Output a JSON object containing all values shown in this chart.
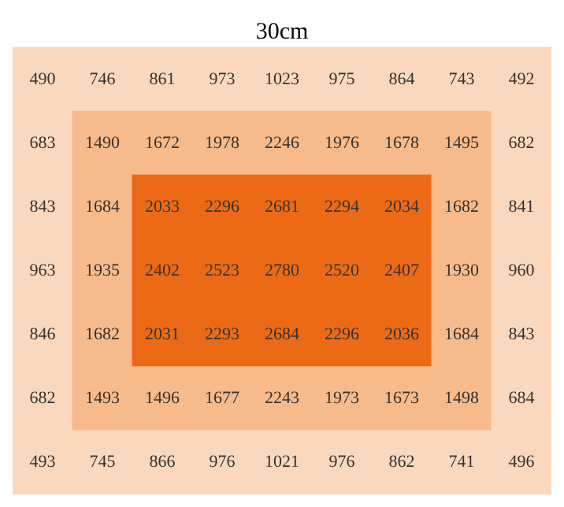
{
  "chart_data": {
    "type": "heatmap",
    "title": "30cm",
    "tick_labels": false,
    "data_labels": true,
    "categories": [
      null,
      null,
      null,
      null,
      null,
      null,
      null,
      null,
      null
    ],
    "y_categories": [
      null,
      null,
      null,
      null,
      null,
      null,
      null
    ],
    "cells": [
      [
        490,
        746,
        861,
        973,
        1023,
        975,
        864,
        743,
        492
      ],
      [
        683,
        1490,
        1672,
        1978,
        2246,
        1976,
        1678,
        1495,
        682
      ],
      [
        843,
        1684,
        2033,
        2296,
        2681,
        2294,
        2034,
        1682,
        841
      ],
      [
        963,
        1935,
        2402,
        2523,
        2780,
        2520,
        2407,
        1930,
        960
      ],
      [
        846,
        1682,
        2031,
        2293,
        2684,
        2296,
        2036,
        1684,
        843
      ],
      [
        682,
        1493,
        1496,
        1677,
        2243,
        1973,
        1673,
        1498,
        684
      ],
      [
        493,
        745,
        866,
        976,
        1021,
        976,
        862,
        741,
        496
      ]
    ],
    "colors": [
      [
        "#fad8bd",
        "#fad8bd",
        "#fad8bd",
        "#fad8bd",
        "#fad8bd",
        "#fad8bd",
        "#fad8bd",
        "#fad8bd",
        "#fad8bd"
      ],
      [
        "#fad8bd",
        "#f7ba8a",
        "#f7ba8a",
        "#f7ba8a",
        "#f7ba8a",
        "#f7ba8a",
        "#f7ba8a",
        "#f7ba8a",
        "#fad8bd"
      ],
      [
        "#fad8bd",
        "#f7ba8a",
        "#ec6a16",
        "#ec6a16",
        "#ec6a16",
        "#ec6a16",
        "#ec6a16",
        "#f7ba8a",
        "#fad8bd"
      ],
      [
        "#fad8bd",
        "#f7ba8a",
        "#ec6a16",
        "#ec6a16",
        "#ec6a16",
        "#ec6a16",
        "#ec6a16",
        "#f7ba8a",
        "#fad8bd"
      ],
      [
        "#fad8bd",
        "#f7ba8a",
        "#ec6a16",
        "#ec6a16",
        "#ec6a16",
        "#ec6a16",
        "#ec6a16",
        "#f7ba8a",
        "#fad8bd"
      ],
      [
        "#fad8bd",
        "#f7ba8a",
        "#f7ba8a",
        "#f7ba8a",
        "#f7ba8a",
        "#f7ba8a",
        "#f7ba8a",
        "#f7ba8a",
        "#fad8bd"
      ],
      [
        "#fad8bd",
        "#fad8bd",
        "#fad8bd",
        "#fad8bd",
        "#fad8bd",
        "#fad8bd",
        "#fad8bd",
        "#fad8bd",
        "#fad8bd"
      ]
    ]
  }
}
